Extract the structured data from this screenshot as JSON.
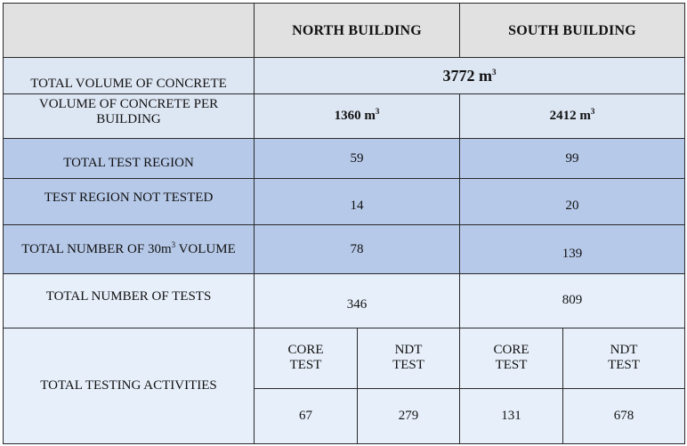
{
  "headers": {
    "north": "NORTH BUILDING",
    "south": "SOUTH BUILDING"
  },
  "total_volume": {
    "label": "TOTAL VOLUME OF CONCRETE",
    "value": "3772 m",
    "unit_exp": "3"
  },
  "volume_per_building": {
    "label_line1": "VOLUME OF CONCRETE PER",
    "label_line2": "BUILDING",
    "north": "1360 m",
    "south": "2412 m",
    "unit_exp": "3"
  },
  "total_test_region": {
    "label": "TOTAL TEST REGION",
    "north": "59",
    "south": "99"
  },
  "not_tested": {
    "label": "TEST REGION NOT TESTED",
    "north": "14",
    "south": "20"
  },
  "volume_count": {
    "label_pre": "TOTAL NUMBER OF 30m",
    "label_exp": "3",
    "label_post": " VOLUME",
    "north": "78",
    "south": "139"
  },
  "total_tests": {
    "label": "TOTAL NUMBER OF TESTS",
    "north": "346",
    "south": "809"
  },
  "testing_activities": {
    "label": "TOTAL TESTING ACTIVITIES",
    "core_line1": "CORE",
    "core_line2": "TEST",
    "ndt_line1": "NDT",
    "ndt_line2": "TEST",
    "north_core": "67",
    "north_ndt": "279",
    "south_core": "131",
    "south_ndt": "678"
  }
}
